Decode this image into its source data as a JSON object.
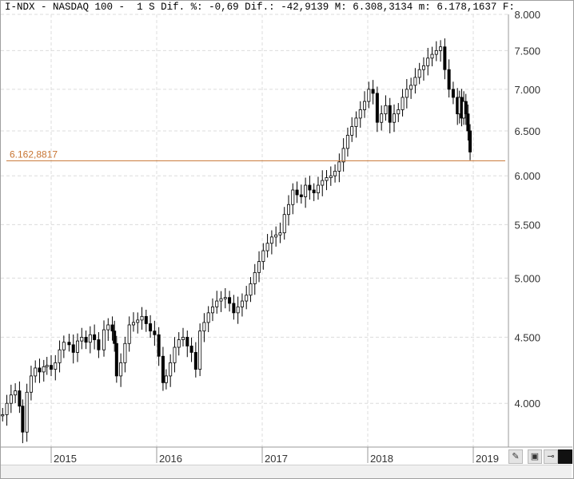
{
  "header": {
    "symbol": "I-NDX",
    "name": "NASDAQ 100",
    "period": "1 S",
    "dif_pct_label": "Dif. %:",
    "dif_pct": "-0,69",
    "dif_label": "Dif.:",
    "dif": "-42,9139",
    "max_label": "M:",
    "max": "6.308,3134",
    "min_label": "m:",
    "min": "6.178,1637",
    "f_label": "F:"
  },
  "horizontal_line": {
    "label": "6.162,8817",
    "value": 6162.8817,
    "color": "#c87533"
  },
  "toolbar": {
    "icons": [
      "chart-settings-icon",
      "save-icon",
      "pin-icon",
      "fill-square-icon"
    ]
  },
  "chart_data": {
    "type": "candlestick",
    "title": "",
    "xlabel": "",
    "ylabel": "",
    "y_scale": "log",
    "ylim": [
      3700,
      8000
    ],
    "xlim": [
      2014.52,
      2019.25
    ],
    "y_ticks": [
      4000,
      4500,
      5000,
      5500,
      6000,
      6500,
      7000,
      7500,
      8000
    ],
    "y_tick_labels": [
      "4.000",
      "4.500",
      "5.000",
      "5.500",
      "6.000",
      "6.500",
      "7.000",
      "7.500",
      "8.000"
    ],
    "x_ticks": [
      2015,
      2016,
      2017,
      2018,
      2019
    ],
    "x_tick_labels": [
      "2015",
      "2016",
      "2017",
      "2018",
      "2019"
    ],
    "grid": true,
    "series": [
      {
        "x": [
          2014.54,
          2014.58,
          2014.62,
          2014.66,
          2014.7,
          2014.73,
          2014.77,
          2014.81,
          2014.85,
          2014.89,
          2014.93,
          2014.96,
          2015.0,
          2015.04,
          2015.08,
          2015.12,
          2015.17,
          2015.21,
          2015.25,
          2015.29,
          2015.33,
          2015.37,
          2015.41,
          2015.45,
          2015.5,
          2015.54,
          2015.58,
          2015.6,
          2015.62,
          2015.66,
          2015.7,
          2015.74,
          2015.78,
          2015.82,
          2015.86,
          2015.9,
          2015.94,
          2015.98,
          2016.02,
          2016.06,
          2016.09,
          2016.13,
          2016.17,
          2016.21,
          2016.25,
          2016.29,
          2016.33,
          2016.37,
          2016.41,
          2016.45,
          2016.49,
          2016.53,
          2016.57,
          2016.61,
          2016.65,
          2016.69,
          2016.73,
          2016.77,
          2016.81,
          2016.85,
          2016.89,
          2016.93,
          2016.97,
          2017.01,
          2017.05,
          2017.09,
          2017.13,
          2017.17,
          2017.21,
          2017.25,
          2017.29,
          2017.33,
          2017.37,
          2017.41,
          2017.45,
          2017.49,
          2017.53,
          2017.57,
          2017.61,
          2017.65,
          2017.69,
          2017.73,
          2017.77,
          2017.81,
          2017.85,
          2017.89,
          2017.93,
          2017.97,
          2018.01,
          2018.05,
          2018.09,
          2018.13,
          2018.17,
          2018.21,
          2018.25,
          2018.29,
          2018.33,
          2018.37,
          2018.41,
          2018.45,
          2018.49,
          2018.53,
          2018.57,
          2018.61,
          2018.65,
          2018.69,
          2018.73,
          2018.77,
          2018.81,
          2018.85,
          2018.87,
          2018.89,
          2018.91,
          2018.93,
          2018.95,
          2018.97
        ],
        "values": [
          3920,
          4000,
          4060,
          4090,
          3980,
          3800,
          4080,
          4200,
          4260,
          4230,
          4270,
          4280,
          4250,
          4300,
          4400,
          4460,
          4440,
          4380,
          4470,
          4500,
          4460,
          4520,
          4480,
          4400,
          4560,
          4600,
          4550,
          4450,
          4200,
          4300,
          4450,
          4600,
          4620,
          4640,
          4670,
          4610,
          4550,
          4520,
          4350,
          4150,
          4200,
          4300,
          4420,
          4480,
          4500,
          4430,
          4380,
          4250,
          4550,
          4620,
          4700,
          4750,
          4800,
          4820,
          4830,
          4780,
          4700,
          4750,
          4800,
          4850,
          4950,
          5050,
          5150,
          5250,
          5320,
          5380,
          5400,
          5420,
          5600,
          5700,
          5850,
          5800,
          5780,
          5900,
          5850,
          5820,
          5900,
          5950,
          5980,
          6000,
          6050,
          6150,
          6300,
          6450,
          6550,
          6650,
          6750,
          6850,
          7000,
          6950,
          6600,
          6700,
          6800,
          6600,
          6700,
          6750,
          6900,
          7000,
          7050,
          7150,
          7250,
          7300,
          7400,
          7450,
          7500,
          7550,
          7250,
          7000,
          6900,
          6700,
          6900,
          6650,
          6850,
          6700,
          6500,
          6260
        ]
      }
    ]
  }
}
